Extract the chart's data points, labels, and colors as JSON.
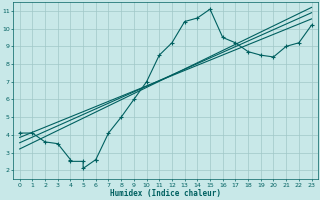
{
  "title": "",
  "xlabel": "Humidex (Indice chaleur)",
  "bg_color": "#c8e8e8",
  "grid_color": "#a0c8c8",
  "line_color": "#006060",
  "xlim": [
    -0.5,
    23.5
  ],
  "ylim": [
    1.5,
    11.5
  ],
  "xticks": [
    0,
    1,
    2,
    3,
    4,
    5,
    6,
    7,
    8,
    9,
    10,
    11,
    12,
    13,
    14,
    15,
    16,
    17,
    18,
    19,
    20,
    21,
    22,
    23
  ],
  "yticks": [
    2,
    3,
    4,
    5,
    6,
    7,
    8,
    9,
    10,
    11
  ],
  "data_x": [
    0,
    1,
    2,
    3,
    4,
    4,
    5,
    5,
    6,
    6,
    7,
    8,
    9,
    10,
    11,
    12,
    13,
    14,
    15,
    16,
    17,
    18,
    19,
    20,
    21,
    22,
    23
  ],
  "data_y": [
    4.1,
    4.1,
    3.6,
    3.5,
    2.6,
    2.5,
    2.5,
    2.1,
    2.6,
    2.6,
    4.1,
    5.0,
    6.0,
    7.0,
    8.5,
    9.2,
    10.4,
    10.6,
    11.1,
    9.5,
    9.2,
    8.7,
    8.5,
    8.4,
    9.0,
    9.2,
    10.2
  ],
  "reg_line1": {
    "x": [
      0,
      23
    ],
    "y": [
      3.55,
      10.9
    ]
  },
  "reg_line2": {
    "x": [
      0,
      23
    ],
    "y": [
      3.2,
      11.2
    ]
  },
  "reg_line3": {
    "x": [
      0,
      23
    ],
    "y": [
      3.85,
      10.55
    ]
  }
}
